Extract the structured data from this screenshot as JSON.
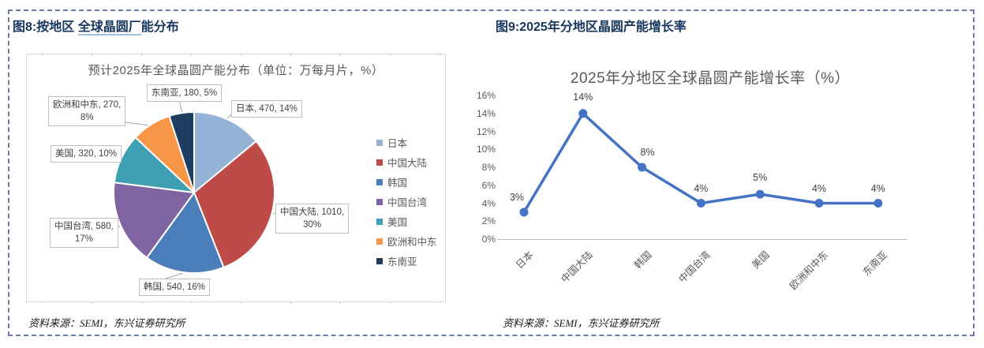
{
  "page": {
    "background": "#FFFFFF",
    "border_color": "#6A7AA5"
  },
  "figure8": {
    "caption_prefix": "图8:按地区 ",
    "caption_underlined": "全球晶圆厂",
    "caption_suffix": "能分布",
    "source": "资料来源：SEMI，东兴证券研究所"
  },
  "figure9": {
    "caption": "图9:2025年分地区晶圆产能增长率",
    "source": "资料来源：SEMI，东兴证券研究所"
  },
  "chart_data": [
    {
      "type": "pie",
      "title": "预计2025年全球晶圆产能分布（单位：万每月片，%）",
      "labels": [
        "日本",
        "中国大陆",
        "韩国",
        "中国台湾",
        "美国",
        "欧洲和中东",
        "东南亚"
      ],
      "values": [
        470,
        1010,
        540,
        580,
        320,
        270,
        180
      ],
      "percents": [
        14,
        30,
        16,
        17,
        10,
        8,
        5
      ],
      "colors": [
        "#95B3D7",
        "#BE4B48",
        "#4A7EBB",
        "#8064A2",
        "#3FA0B4",
        "#F79646",
        "#1F3C61"
      ],
      "data_labels": [
        "日本, 470, 14%",
        "中国大陆, 1010,\n30%",
        "韩国, 540, 16%",
        "中国台湾, 580,\n17%",
        "美国, 320, 10%",
        "欧洲和中东, 270,\n8%",
        "东南亚, 180, 5%"
      ],
      "legend_position": "right",
      "start_angle_deg": 0,
      "direction": "clockwise"
    },
    {
      "type": "line",
      "title": "2025年分地区全球晶圆产能增长率（%）",
      "categories": [
        "日本",
        "中国大陆",
        "韩国",
        "中国台湾",
        "美国",
        "欧洲和中东",
        "东南亚"
      ],
      "values": [
        3,
        14,
        8,
        4,
        5,
        4,
        4
      ],
      "data_labels": [
        "3%",
        "14%",
        "8%",
        "4%",
        "5%",
        "4%",
        "4%"
      ],
      "ylim": [
        0,
        16
      ],
      "ytick_step": 2,
      "ytick_labels": [
        "0%",
        "2%",
        "4%",
        "6%",
        "8%",
        "10%",
        "12%",
        "14%",
        "16%"
      ],
      "line_color": "#4472C4",
      "axis_color": "#BFBFBF",
      "grid": false,
      "legend": "none"
    }
  ]
}
